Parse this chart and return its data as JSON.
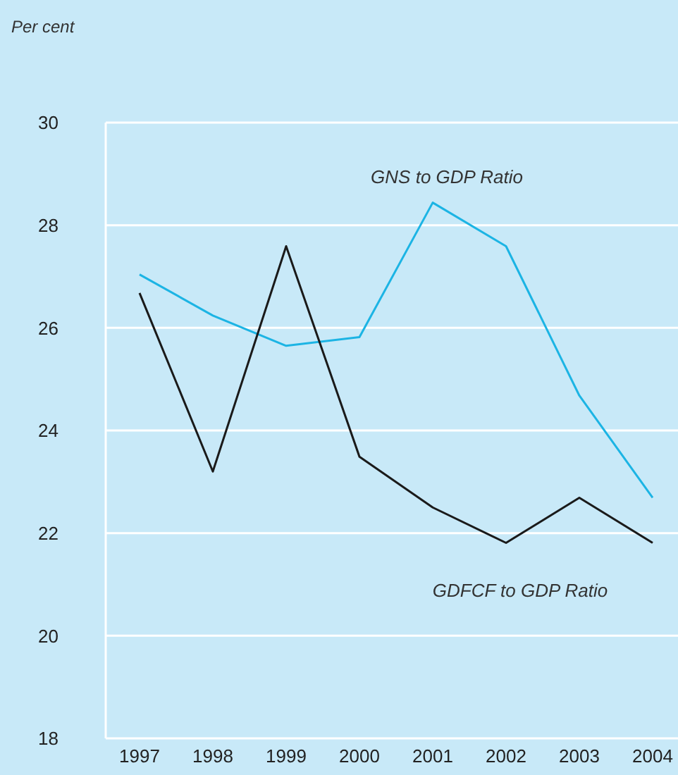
{
  "chart_data": {
    "type": "line",
    "ylabel": "Per cent",
    "categories": [
      "1997",
      "1998",
      "1999",
      "2000",
      "2001",
      "2002",
      "2003",
      "2004"
    ],
    "series": [
      {
        "name": "GNS to GDP Ratio",
        "color": "#1cb4e4",
        "values": [
          27.04,
          26.24,
          25.65,
          25.82,
          28.44,
          27.59,
          24.68,
          22.69
        ]
      },
      {
        "name": "GDFCF to GDP Ratio",
        "color": "#1a1a1a",
        "values": [
          26.68,
          23.2,
          27.59,
          23.49,
          22.5,
          21.81,
          22.69,
          21.81
        ]
      }
    ],
    "ylim": [
      18,
      30
    ],
    "yticks": [
      18,
      20,
      22,
      24,
      26,
      28,
      30
    ],
    "grid": "y",
    "marker": "none",
    "line_style": "solid",
    "legend": false
  }
}
